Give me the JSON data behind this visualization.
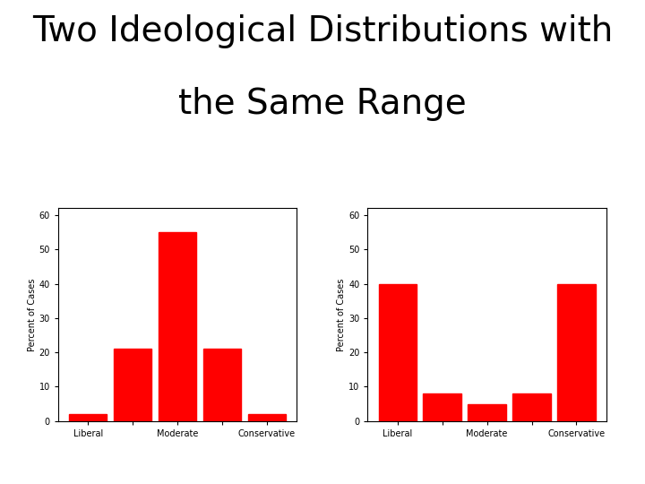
{
  "title_line1": "Two Ideological Distributions with",
  "title_line2": "the Same Range",
  "title_fontsize": 28,
  "title_fontweight": "normal",
  "title_fontfamily": "sans-serif",
  "bar_color": "#ff0000",
  "chart1": {
    "values": [
      2,
      21,
      55,
      21,
      2
    ],
    "ylabel": "Percent of Cases",
    "ylim": [
      0,
      62
    ],
    "yticks": [
      0,
      10,
      20,
      30,
      40,
      50,
      60
    ],
    "xtick_labels": [
      "Liberal",
      "",
      "Moderate",
      "",
      "Conservative"
    ]
  },
  "chart2": {
    "values": [
      40,
      8,
      5,
      8,
      40
    ],
    "ylabel": "Percent of Cases",
    "ylim": [
      0,
      62
    ],
    "yticks": [
      0,
      10,
      20,
      30,
      40,
      50,
      60
    ],
    "xtick_labels": [
      "Liberal",
      "",
      "Moderate",
      "",
      "Conservative"
    ]
  },
  "bg_color": "#ffffff",
  "axes_color": "#000000",
  "ylabel_fontsize": 7,
  "tick_fontsize": 7,
  "xlabel_fontsize": 7
}
